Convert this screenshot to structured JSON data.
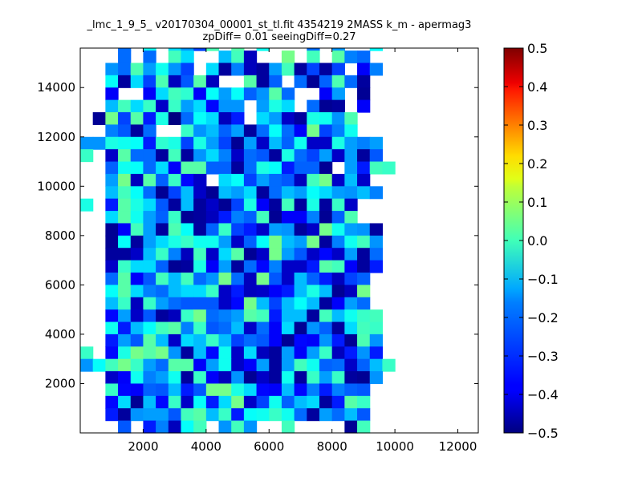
{
  "chart_data": {
    "type": "heatmap",
    "title": "_lmc_1_9_5_ v20170304_00001_st_tl.fit 4354219 2MASS k_m - apermag3",
    "subtitle": "zpDiff= 0.01 seeingDiff=0.27",
    "xlabel": "",
    "ylabel": "",
    "xlim": [
      0,
      12650
    ],
    "ylim": [
      0,
      15600
    ],
    "xticks": [
      2000,
      4000,
      6000,
      8000,
      10000,
      12000
    ],
    "yticks": [
      2000,
      4000,
      6000,
      8000,
      10000,
      12000,
      14000
    ],
    "colormap": "jet",
    "color_range": [
      -0.5,
      0.5
    ],
    "colorbar_ticks": [
      "0.5",
      "0.4",
      "0.3",
      "0.2",
      "0.1",
      "0.0",
      "−0.1",
      "−0.2",
      "−0.3",
      "−0.4",
      "−0.5"
    ],
    "cell_width": 400,
    "cell_height": 500,
    "grid": [
      "...x.M.HAtS.T.M...x.A..L.",
      "...x.x.RH..ERg..W.R.Tzx..",
      "..AxSBMAt.HdzgdBRdtdt.mz.",
      "..LdHtSgvTg..Tdw.xcwSxd..",
      "..m..mHRPmLBLwATx..mB.c..",
      "..ERHQhQBHnAA.BNH.xcd.m..",
      ".cWtTpNaxLHgp.HBhdNMAS...",
      "..zvdx..QAEwBdxLxmWtzM...",
      "AANMLpPNtNBtcBhEwMhhNBzB.",
      "Q.hTxxdRdAHzhxvdNxtBhBdv.",
      "..wMLxHmTTwwdxNLpwwc.BpRQ",
      "..BWgTwQnh.HLtBxvgRWhEh..",
      "..ERLxctEhcEBHdxEBLHBAEz.",
      "N.pTNHvdEdhctNmdRdNdQh...",
      "..HTMBwQcdgpzwRcmmzcwS...",
      "..cmRBdSLdwQtphBAdhWMBAd.",
      "..cLdBHNQMMBhwLWEBWdzMRA.",
      "..ddhEQzgRhHTchWBvhnhBdx.",
      "..hQHHwcdNmBdxnzhhpTRmdp.",
      "..xTmvRERxAWxgWvhEwpgtw..",
      "..LTHzxEHHQhpghmpENEcgW..",
      "..EQgQBxvvvhnWEtELEdmBx..",
      "..nBhvdgQWxzBTRpEEdREMQR.",
      "..MpELRTzQvxEhxmHcAwdHRQ.",
      "..pBvTEhHEQEtxvmcnmApcSA.",
      "Q.nNWTWAdEnMhHgdBmBQgpAp.",
      "ALRWQBxTTmBMhmBdBRMwxhwEQ",
      "..hmMzBMdQmgAchdMdQBQdcA.",
      "..QnmwvEpvWWNHnmEnzpzwv..",
      "..nHcEnQhLpHWhtMwEHdpTQ..",
      "..pdABBvRTEQpLMQMxdBxEv..",
      "...v.pzgLR.ARA..R....cR.."
    ],
    "legend_of_grid": "Each character is one bin (rows from top y=15500 down to y=0, 25 columns from x=0). '.' = empty bin; letters a..z = values -0.50..-0.24 step 0.01, A..Z = -0.23..0.02 step 0.01."
  }
}
